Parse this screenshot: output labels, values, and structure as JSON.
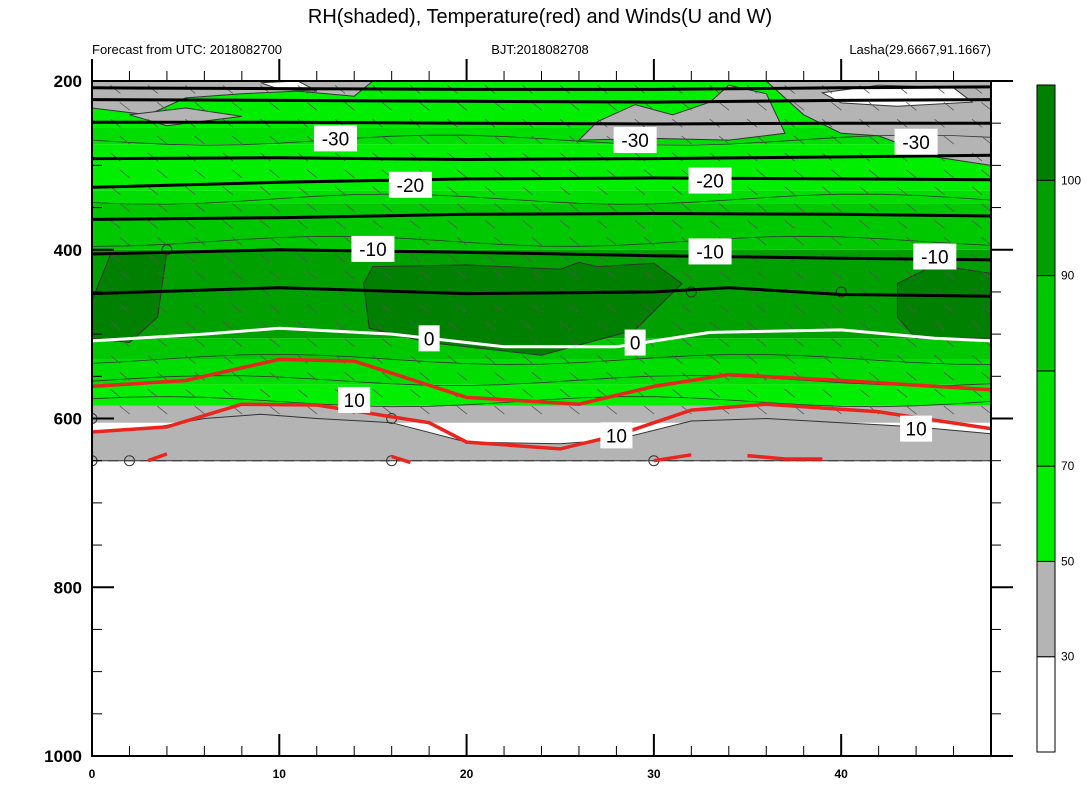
{
  "chart_data": {
    "type": "contour",
    "title": "RH(shaded), Temperature(red) and Winds(U and W)",
    "subtitle_left": "Forecast from UTC: 2018082700",
    "subtitle_center": "BJT:2018082708",
    "subtitle_right": "Lasha(29.6667,91.1667)",
    "xlabel": "",
    "ylabel": "",
    "xlim": [
      0,
      48
    ],
    "ylim": [
      1000,
      200
    ],
    "x_ticks": [
      "0",
      "10",
      "20",
      "30",
      "40"
    ],
    "x_tick_values": [
      0,
      10,
      20,
      30,
      40
    ],
    "y_ticks": [
      "200",
      "400",
      "600",
      "800",
      "1000"
    ],
    "y_tick_values": [
      200,
      400,
      600,
      800,
      1000
    ],
    "surface_pressure_hpa": 650,
    "colorbar": {
      "labels": [
        "30",
        "50",
        "70",
        "90",
        "100"
      ],
      "levels": [
        30,
        50,
        70,
        90,
        100
      ],
      "colors": [
        "#ffffff",
        "#b4b4b4",
        "#00ee00",
        "#00dd00",
        "#00c800",
        "#00a000",
        "#008000"
      ]
    },
    "temperature_contours": [
      {
        "level": -30,
        "label": "-30",
        "color": "#000000"
      },
      {
        "level": -20,
        "label": "-20",
        "color": "#000000"
      },
      {
        "level": -10,
        "label": "-10",
        "color": "#000000"
      },
      {
        "level": 0,
        "label": "0",
        "color": "#ffffff"
      },
      {
        "level": 10,
        "label": "10",
        "color": "#e8261e"
      }
    ]
  }
}
